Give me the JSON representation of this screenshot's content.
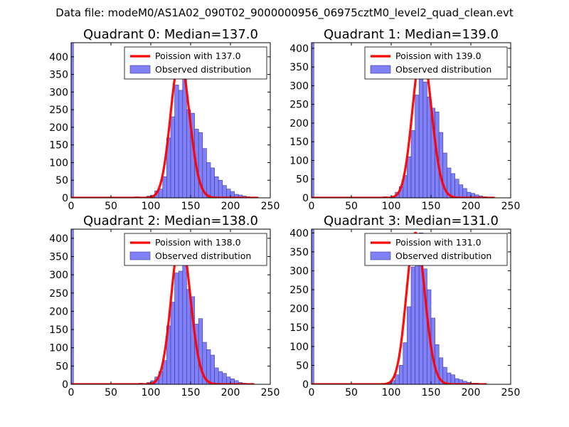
{
  "suptitle": "Data file: modeM0/AS1A02_090T02_9000000956_06975cztM0_level2_quad_clean.evt",
  "colors": {
    "bar_fill": "#8080f8",
    "bar_edge": "#3a3a9a",
    "poisson_line": "#ff0000",
    "axes": "#000000"
  },
  "chart_data": [
    {
      "type": "bar",
      "title": "Quadrant 0: Median=137.0",
      "median": 137,
      "xlim": [
        0,
        250
      ],
      "ylim": [
        0,
        440
      ],
      "xticks": [
        0,
        50,
        100,
        150,
        200,
        250
      ],
      "yticks": [
        0,
        50,
        100,
        150,
        200,
        250,
        300,
        350,
        400
      ],
      "bin_width": 5,
      "edge_bar": {
        "x": 0,
        "width": 3,
        "value": 440
      },
      "bins": [
        {
          "x": 80,
          "y": 3
        },
        {
          "x": 95,
          "y": 5
        },
        {
          "x": 100,
          "y": 7
        },
        {
          "x": 105,
          "y": 20
        },
        {
          "x": 110,
          "y": 25
        },
        {
          "x": 115,
          "y": 60
        },
        {
          "x": 120,
          "y": 170
        },
        {
          "x": 125,
          "y": 230
        },
        {
          "x": 130,
          "y": 320
        },
        {
          "x": 135,
          "y": 305
        },
        {
          "x": 140,
          "y": 400
        },
        {
          "x": 145,
          "y": 250
        },
        {
          "x": 150,
          "y": 240
        },
        {
          "x": 155,
          "y": 195
        },
        {
          "x": 160,
          "y": 185
        },
        {
          "x": 165,
          "y": 140
        },
        {
          "x": 170,
          "y": 100
        },
        {
          "x": 175,
          "y": 85
        },
        {
          "x": 180,
          "y": 60
        },
        {
          "x": 185,
          "y": 50
        },
        {
          "x": 190,
          "y": 35
        },
        {
          "x": 195,
          "y": 25
        },
        {
          "x": 200,
          "y": 18
        },
        {
          "x": 205,
          "y": 10
        },
        {
          "x": 210,
          "y": 8
        },
        {
          "x": 215,
          "y": 5
        },
        {
          "x": 220,
          "y": 3
        }
      ],
      "poisson_peak": 395,
      "legend": [
        "Poission with 137.0",
        "Observed distribution"
      ]
    },
    {
      "type": "bar",
      "title": "Quadrant 1: Median=139.0",
      "median": 139,
      "xlim": [
        0,
        250
      ],
      "ylim": [
        0,
        415
      ],
      "xticks": [
        0,
        50,
        100,
        150,
        200,
        250
      ],
      "yticks": [
        0,
        50,
        100,
        150,
        200,
        250,
        300,
        350,
        400
      ],
      "bin_width": 5,
      "edge_bar": {
        "x": 0,
        "width": 3,
        "value": 415
      },
      "bins": [
        {
          "x": 90,
          "y": 3
        },
        {
          "x": 100,
          "y": 5
        },
        {
          "x": 105,
          "y": 15
        },
        {
          "x": 110,
          "y": 30
        },
        {
          "x": 115,
          "y": 60
        },
        {
          "x": 120,
          "y": 110
        },
        {
          "x": 125,
          "y": 180
        },
        {
          "x": 130,
          "y": 275
        },
        {
          "x": 135,
          "y": 350
        },
        {
          "x": 140,
          "y": 310
        },
        {
          "x": 145,
          "y": 270
        },
        {
          "x": 150,
          "y": 240
        },
        {
          "x": 155,
          "y": 230
        },
        {
          "x": 160,
          "y": 175
        },
        {
          "x": 165,
          "y": 120
        },
        {
          "x": 170,
          "y": 80
        },
        {
          "x": 175,
          "y": 65
        },
        {
          "x": 180,
          "y": 50
        },
        {
          "x": 185,
          "y": 35
        },
        {
          "x": 190,
          "y": 25
        },
        {
          "x": 195,
          "y": 15
        },
        {
          "x": 200,
          "y": 12
        },
        {
          "x": 205,
          "y": 8
        },
        {
          "x": 210,
          "y": 5
        },
        {
          "x": 215,
          "y": 3
        }
      ],
      "poisson_peak": 395,
      "legend": [
        "Poission with 139.0",
        "Observed distribution"
      ]
    },
    {
      "type": "bar",
      "title": "Quadrant 2: Median=138.0",
      "median": 138,
      "xlim": [
        0,
        250
      ],
      "ylim": [
        0,
        425
      ],
      "xticks": [
        0,
        50,
        100,
        150,
        200,
        250
      ],
      "yticks": [
        0,
        50,
        100,
        150,
        200,
        250,
        300,
        350,
        400
      ],
      "bin_width": 5,
      "edge_bar": {
        "x": 0,
        "width": 3,
        "value": 425
      },
      "bins": [
        {
          "x": 85,
          "y": 3
        },
        {
          "x": 95,
          "y": 5
        },
        {
          "x": 100,
          "y": 10
        },
        {
          "x": 105,
          "y": 20
        },
        {
          "x": 110,
          "y": 35
        },
        {
          "x": 115,
          "y": 65
        },
        {
          "x": 120,
          "y": 160
        },
        {
          "x": 125,
          "y": 225
        },
        {
          "x": 130,
          "y": 305
        },
        {
          "x": 135,
          "y": 310
        },
        {
          "x": 140,
          "y": 400
        },
        {
          "x": 145,
          "y": 260
        },
        {
          "x": 150,
          "y": 240
        },
        {
          "x": 155,
          "y": 165
        },
        {
          "x": 160,
          "y": 180
        },
        {
          "x": 165,
          "y": 115
        },
        {
          "x": 170,
          "y": 95
        },
        {
          "x": 175,
          "y": 80
        },
        {
          "x": 180,
          "y": 45
        },
        {
          "x": 185,
          "y": 35
        },
        {
          "x": 190,
          "y": 30
        },
        {
          "x": 195,
          "y": 20
        },
        {
          "x": 200,
          "y": 15
        },
        {
          "x": 205,
          "y": 10
        },
        {
          "x": 210,
          "y": 5
        },
        {
          "x": 215,
          "y": 3
        }
      ],
      "poisson_peak": 405,
      "legend": [
        "Poission with 138.0",
        "Observed distribution"
      ]
    },
    {
      "type": "bar",
      "title": "Quadrant 3: Median=131.0",
      "median": 131,
      "xlim": [
        0,
        250
      ],
      "ylim": [
        0,
        410
      ],
      "xticks": [
        0,
        50,
        100,
        150,
        200,
        250
      ],
      "yticks": [
        0,
        50,
        100,
        150,
        200,
        250,
        300,
        350,
        400
      ],
      "bin_width": 5,
      "edge_bar": {
        "x": 0,
        "width": 3,
        "value": 410
      },
      "bins": [
        {
          "x": 95,
          "y": 5
        },
        {
          "x": 100,
          "y": 10
        },
        {
          "x": 105,
          "y": 25
        },
        {
          "x": 110,
          "y": 50
        },
        {
          "x": 115,
          "y": 110
        },
        {
          "x": 120,
          "y": 205
        },
        {
          "x": 125,
          "y": 310
        },
        {
          "x": 130,
          "y": 320
        },
        {
          "x": 135,
          "y": 400
        },
        {
          "x": 140,
          "y": 305
        },
        {
          "x": 145,
          "y": 250
        },
        {
          "x": 150,
          "y": 175
        },
        {
          "x": 155,
          "y": 105
        },
        {
          "x": 160,
          "y": 70
        },
        {
          "x": 165,
          "y": 45
        },
        {
          "x": 170,
          "y": 30
        },
        {
          "x": 175,
          "y": 25
        },
        {
          "x": 180,
          "y": 15
        },
        {
          "x": 185,
          "y": 12
        },
        {
          "x": 190,
          "y": 8
        },
        {
          "x": 195,
          "y": 5
        },
        {
          "x": 200,
          "y": 3
        },
        {
          "x": 205,
          "y": 3
        }
      ],
      "poisson_peak": 400,
      "legend": [
        "Poission with 131.0",
        "Observed distribution"
      ]
    }
  ]
}
